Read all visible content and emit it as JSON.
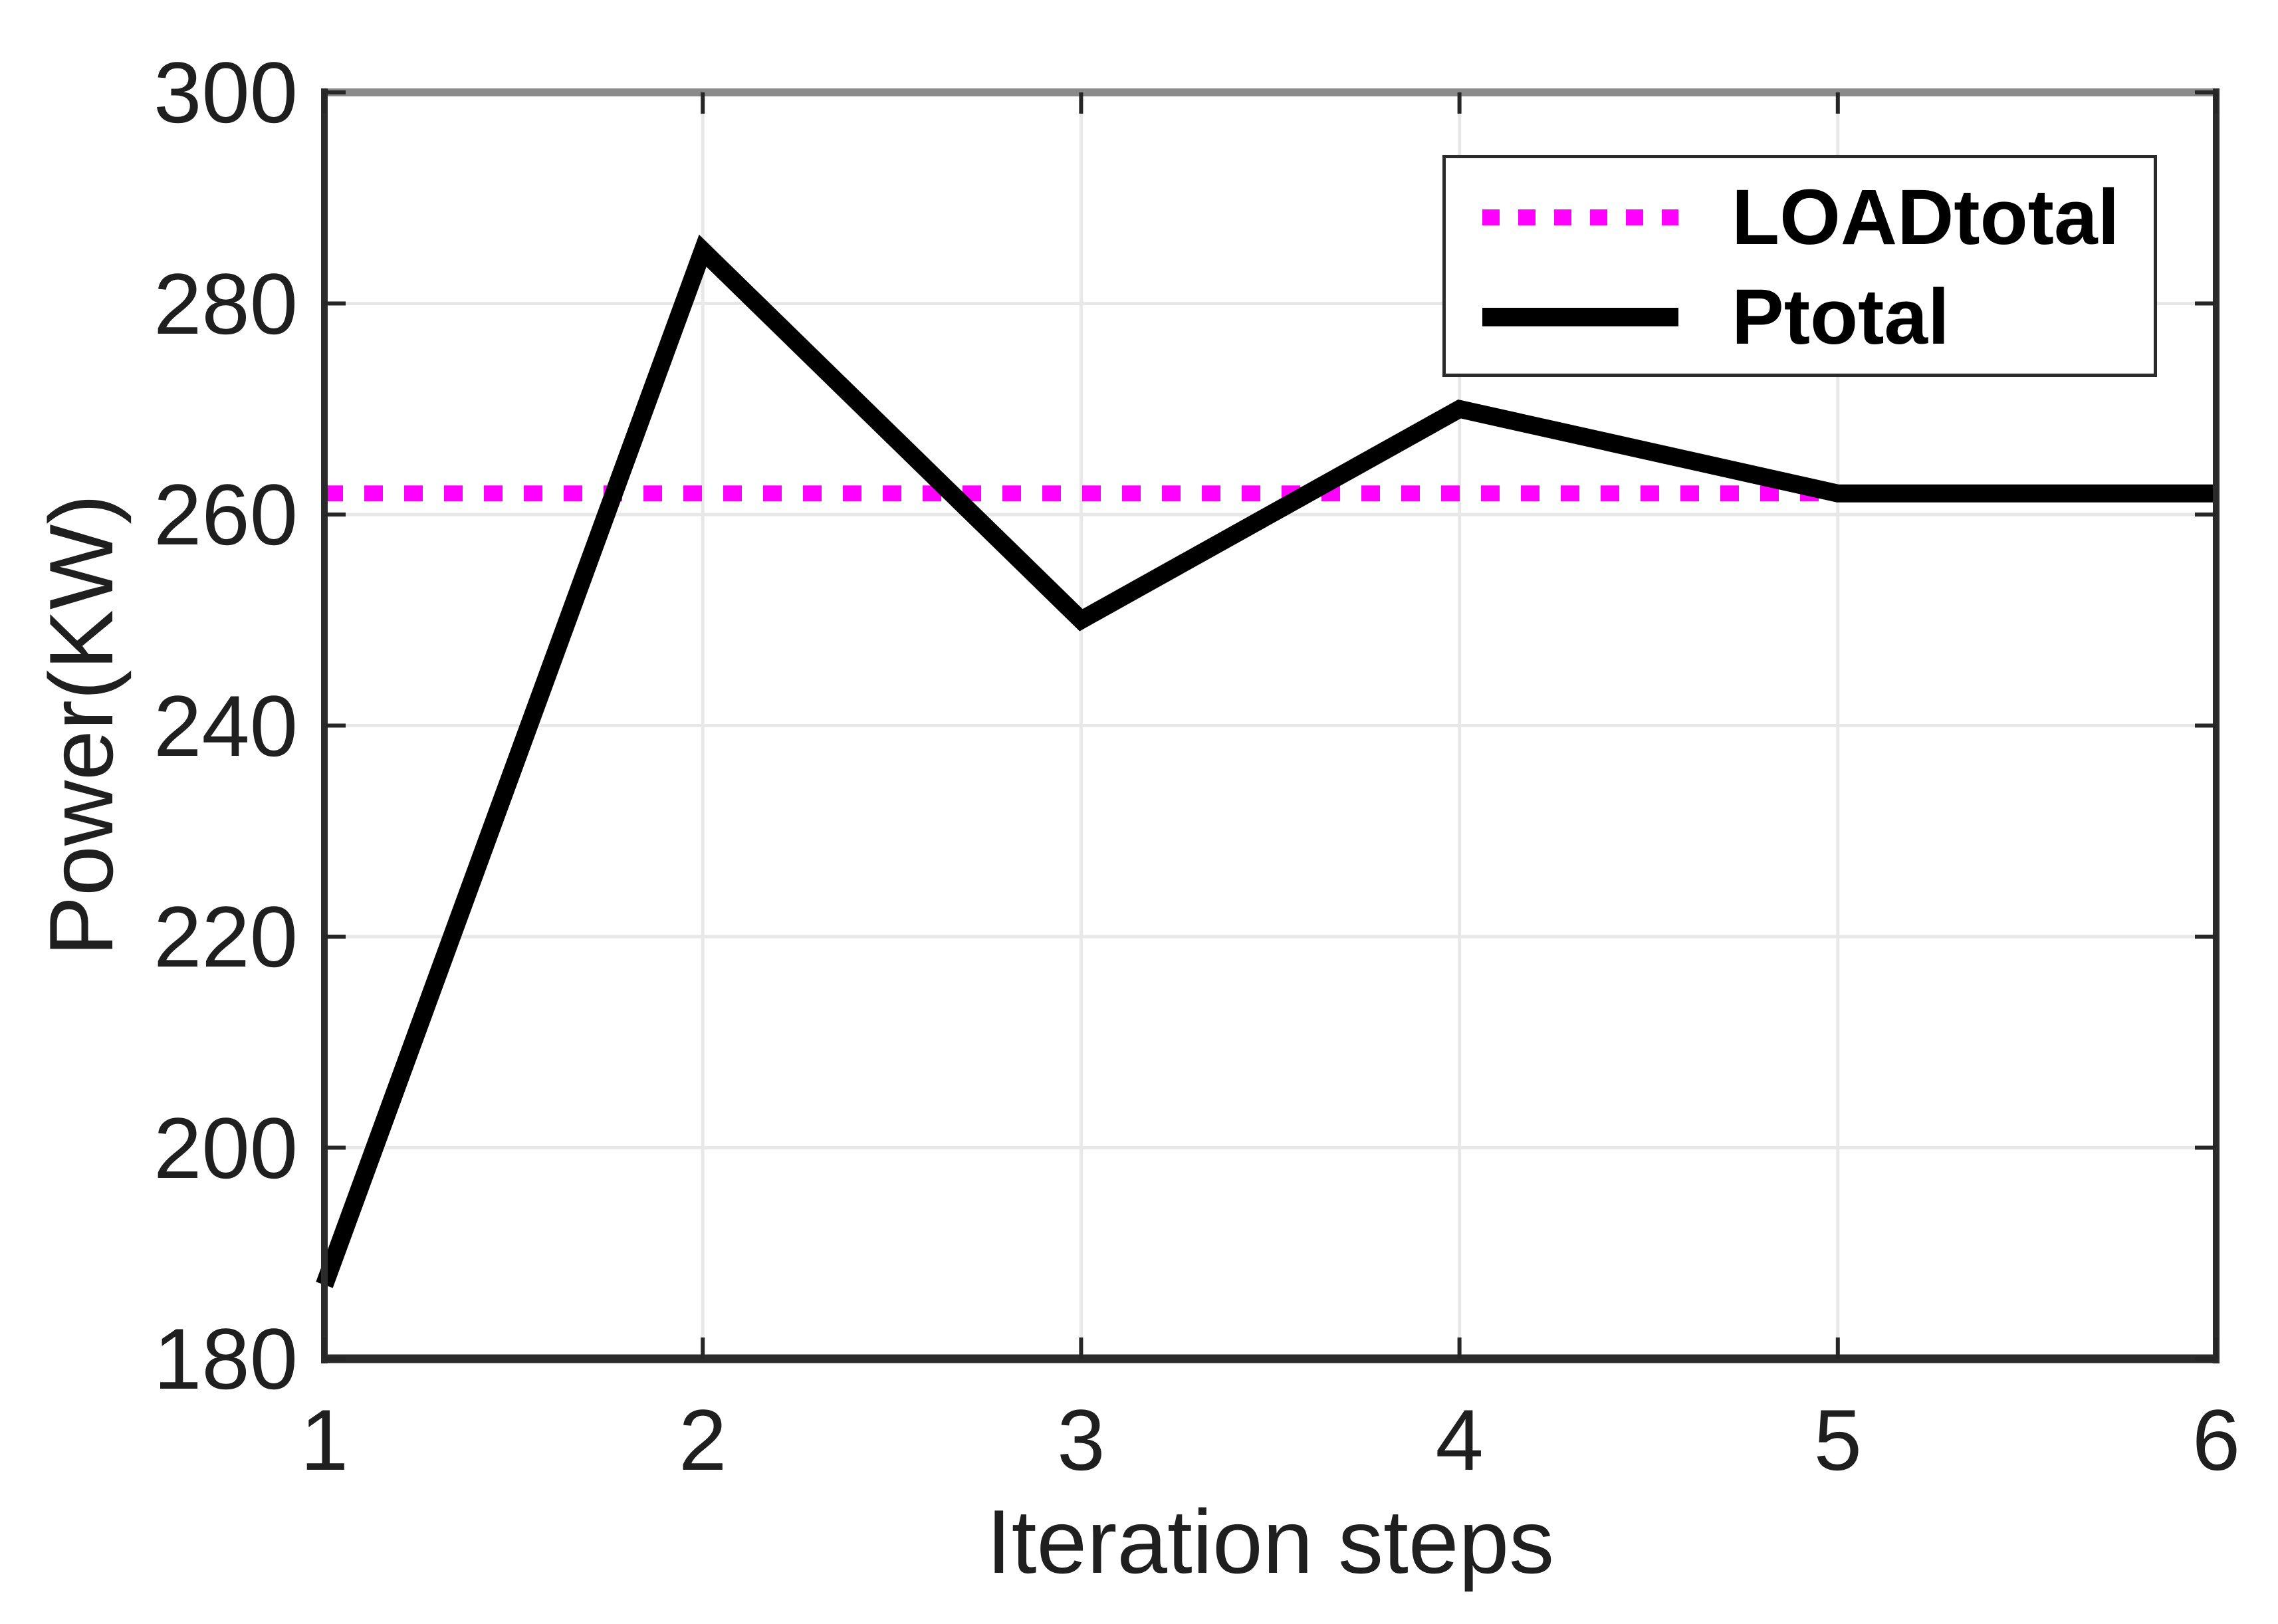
{
  "chart_data": {
    "type": "line",
    "title": "",
    "xlabel": "Iteration steps",
    "ylabel": "Power(KW)",
    "x": [
      1,
      2,
      3,
      4,
      5,
      6
    ],
    "xlim": [
      1,
      6
    ],
    "ylim": [
      180,
      300
    ],
    "x_ticks": [
      1,
      2,
      3,
      4,
      5,
      6
    ],
    "y_ticks": [
      180,
      200,
      220,
      240,
      260,
      280,
      300
    ],
    "grid": true,
    "legend_position": "top-right",
    "series": [
      {
        "name": "LOADtotal",
        "line_style": "dotted",
        "color": "#FF00FF",
        "line_width": 24,
        "values": [
          262,
          262,
          262,
          262,
          262,
          262
        ]
      },
      {
        "name": "Ptotal",
        "line_style": "solid",
        "color": "#000000",
        "line_width": 27,
        "values": [
          187,
          285,
          250,
          270,
          262,
          262
        ]
      }
    ],
    "colors": {
      "grid_line": "#e8e8e8",
      "spine_top": "#8a8a8a",
      "spine": "#2b2b2b",
      "tick_mark": "#262626",
      "tick_text": "#1f1f1f"
    }
  }
}
